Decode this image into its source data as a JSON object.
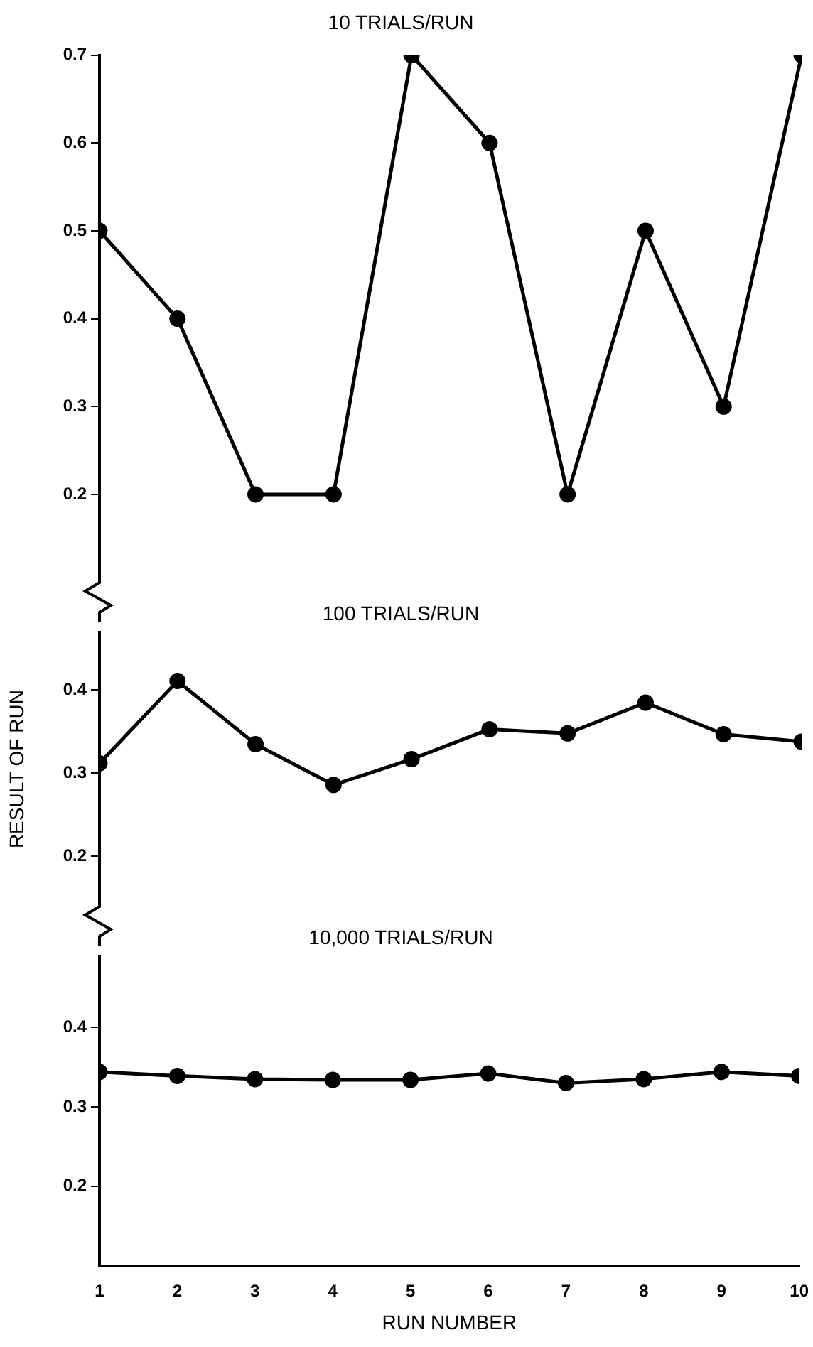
{
  "chart_data": [
    {
      "type": "line",
      "title": "10 TRIALS/RUN",
      "x": [
        1,
        2,
        3,
        4,
        5,
        6,
        7,
        8,
        9,
        10
      ],
      "xlim": [
        1,
        10
      ],
      "xticks": [
        1,
        2,
        3,
        4,
        5,
        6,
        7,
        8,
        9,
        10
      ],
      "ylim": [
        0.1,
        0.7
      ],
      "yticks": [
        0.2,
        0.3,
        0.4,
        0.5,
        0.6,
        0.7
      ],
      "tick_labels": "y",
      "marker": "circle",
      "line_style": "solid",
      "grid": false,
      "legend": false,
      "series": [
        {
          "color": "#000000",
          "values": [
            0.5,
            0.4,
            0.2,
            0.2,
            0.7,
            0.6,
            0.2,
            0.5,
            0.3,
            0.7
          ]
        }
      ]
    },
    {
      "type": "line",
      "title": "100 TRIALS/RUN",
      "ylabel": "RESULT OF RUN",
      "x": [
        1,
        2,
        3,
        4,
        5,
        6,
        7,
        8,
        9,
        10
      ],
      "xlim": [
        1,
        10
      ],
      "xticks": [
        1,
        2,
        3,
        4,
        5,
        6,
        7,
        8,
        9,
        10
      ],
      "ylim": [
        0.14,
        0.47
      ],
      "yticks": [
        0.2,
        0.3,
        0.4
      ],
      "tick_labels": "y",
      "marker": "circle",
      "line_style": "solid",
      "grid": false,
      "legend": false,
      "series": [
        {
          "color": "#000000",
          "values": [
            0.312,
            0.411,
            0.335,
            0.286,
            0.317,
            0.353,
            0.348,
            0.385,
            0.347,
            0.338
          ]
        }
      ]
    },
    {
      "type": "line",
      "title": "10,000 TRIALS/RUN",
      "xlabel": "RUN NUMBER",
      "x": [
        1,
        2,
        3,
        4,
        5,
        6,
        7,
        8,
        9,
        10
      ],
      "xlim": [
        1,
        10
      ],
      "xticks": [
        1,
        2,
        3,
        4,
        5,
        6,
        7,
        8,
        9,
        10
      ],
      "ylim": [
        0.1,
        0.49
      ],
      "yticks": [
        0.2,
        0.3,
        0.4
      ],
      "marker": "circle",
      "line_style": "solid",
      "grid": false,
      "legend": false,
      "series": [
        {
          "color": "#000000",
          "values": [
            0.344,
            0.339,
            0.335,
            0.334,
            0.334,
            0.342,
            0.33,
            0.335,
            0.344,
            0.339
          ]
        }
      ]
    }
  ]
}
